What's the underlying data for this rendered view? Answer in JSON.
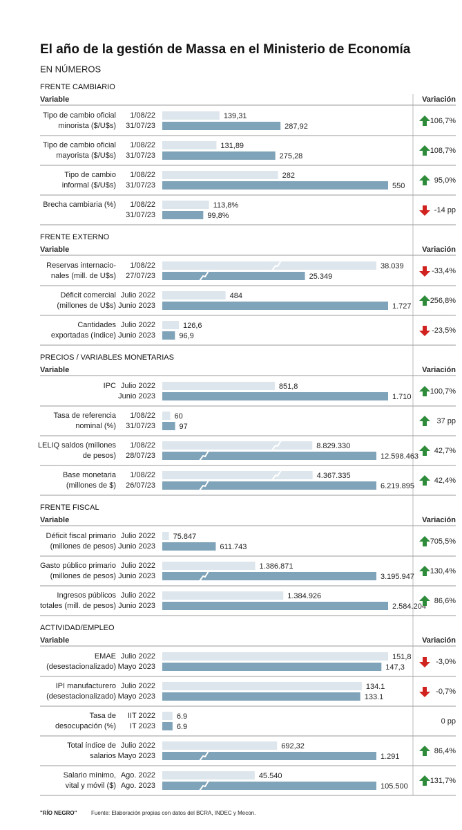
{
  "header": {
    "title": "El año de la gestión de Massa en el Ministerio de Economía",
    "subtitle": "EN NÚMEROS"
  },
  "column_labels": {
    "variable": "Variable",
    "variation": "Variación"
  },
  "colors": {
    "before": "#dde6ec",
    "after": "#7fa3b8",
    "up": "#2e8b3a",
    "down": "#d0231f"
  },
  "sections": [
    {
      "title": "FRENTE CAMBIARIO",
      "rows": [
        {
          "label_lines": [
            "Tipo de cambio oficial",
            "minorista ($/U$s)"
          ],
          "dates": [
            "1/08/22",
            "31/07/23"
          ],
          "values": [
            139.31,
            287.92
          ],
          "value_labels": [
            "139,31",
            "287,92"
          ],
          "variation": "106,7%",
          "trend": "up"
        },
        {
          "label_lines": [
            "Tipo de cambio oficial",
            "mayorista ($/U$s)"
          ],
          "dates": [
            "1/08/22",
            "31/07/23"
          ],
          "values": [
            131.89,
            275.28
          ],
          "value_labels": [
            "131,89",
            "275,28"
          ],
          "variation": "108,7%",
          "trend": "up"
        },
        {
          "label_lines": [
            "Tipo de cambio",
            "informal ($/U$s)"
          ],
          "dates": [
            "1/08/22",
            "31/07/23"
          ],
          "values": [
            282,
            550
          ],
          "variation": "95,0%",
          "trend": "up"
        },
        {
          "label_lines": [
            "Brecha cambiaria (%)"
          ],
          "dates": [
            "1/08/22",
            "31/07/23"
          ],
          "values": [
            113.8,
            99.8
          ],
          "value_labels": [
            "113,8%",
            "99,8%"
          ],
          "variation": "-14 pp",
          "trend": "down"
        }
      ]
    },
    {
      "title": "FRENTE EXTERNO",
      "rows": [
        {
          "label_lines": [
            "Reservas internacio-",
            "nales (mill. de U$s)"
          ],
          "dates": [
            "1/08/22",
            "27/07/23"
          ],
          "values": [
            38039,
            25349
          ],
          "value_labels": [
            "38.039",
            "25.349"
          ],
          "axis_break": true,
          "variation": "-33,4%",
          "trend": "down"
        },
        {
          "label_lines": [
            "Déficit comercial",
            "(millones de U$s)"
          ],
          "dates": [
            "Julio 2022",
            "Junio 2023"
          ],
          "values": [
            484,
            1727
          ],
          "value_labels": [
            "484",
            "1.727"
          ],
          "variation": "256,8%",
          "trend": "up"
        },
        {
          "label_lines": [
            "Cantidades",
            "exportadas (índice)"
          ],
          "dates": [
            "Julio 2022",
            "Junio 2023"
          ],
          "values": [
            126.6,
            96.9
          ],
          "value_labels": [
            "126,6",
            "96,9"
          ],
          "variation": "-23,5%",
          "trend": "down"
        }
      ]
    },
    {
      "title": "PRECIOS / VARIABLES MONETARIAS",
      "rows": [
        {
          "label_lines": [
            "IPC"
          ],
          "dates": [
            "Julio 2022",
            "Junio 2023"
          ],
          "values": [
            851.8,
            1710
          ],
          "value_labels": [
            "851,8",
            "1.710"
          ],
          "variation": "100,7%",
          "trend": "up"
        },
        {
          "label_lines": [
            "Tasa de referencia",
            "nominal (%)"
          ],
          "dates": [
            "1/08/22",
            "31/07/23"
          ],
          "values": [
            60,
            97
          ],
          "variation": "37 pp",
          "trend": "up"
        },
        {
          "label_lines": [
            "LELIQ saldos (millones",
            "de pesos)"
          ],
          "dates": [
            "1/08/22",
            "28/07/23"
          ],
          "values": [
            8829330,
            12598463
          ],
          "value_labels": [
            "8.829.330",
            "12.598.463"
          ],
          "axis_break": true,
          "variation": "42,7%",
          "trend": "up"
        },
        {
          "label_lines": [
            "Base monetaria",
            "(millones de $)"
          ],
          "dates": [
            "1/08/22",
            "26/07/23"
          ],
          "values": [
            4367335,
            6219895
          ],
          "value_labels": [
            "4.367.335",
            "6.219.895"
          ],
          "axis_break": true,
          "variation": "42,4%",
          "trend": "up"
        }
      ]
    },
    {
      "title": "FRENTE FISCAL",
      "rows": [
        {
          "label_lines": [
            "Déficit fiscal primario",
            "(millones de pesos)"
          ],
          "dates": [
            "Julio 2022",
            "Junio 2023"
          ],
          "values": [
            75847,
            611743
          ],
          "value_labels": [
            "75.847",
            "611.743"
          ],
          "variation": "705,5%",
          "trend": "up"
        },
        {
          "label_lines": [
            "Gasto público primario",
            "(millones de pesos)"
          ],
          "dates": [
            "Julio 2022",
            "Junio 2023"
          ],
          "values": [
            1386871,
            3195947
          ],
          "value_labels": [
            "1.386.871",
            "3.195.947"
          ],
          "axis_break": true,
          "variation": "130,4%",
          "trend": "up"
        },
        {
          "label_lines": [
            "Ingresos públicos",
            "totales (mill. de pesos)"
          ],
          "dates": [
            "Julio 2022",
            "Junio 2023"
          ],
          "values": [
            1384926,
            2584204
          ],
          "value_labels": [
            "1.384.926",
            "2.584.204"
          ],
          "variation": "86,6%",
          "trend": "up"
        }
      ]
    },
    {
      "title": "ACTIVIDAD/EMPLEO",
      "rows": [
        {
          "label_lines": [
            "EMAE",
            "(desestacionalizado)"
          ],
          "dates": [
            "Julio 2022",
            "Mayo 2023"
          ],
          "values": [
            151.8,
            147.3
          ],
          "value_labels": [
            "151,8",
            "147,3"
          ],
          "variation": "-3,0%",
          "trend": "down"
        },
        {
          "label_lines": [
            "IPI manufacturero",
            "(desestacionalizado)"
          ],
          "dates": [
            "Julio 2022",
            "Mayo 2023"
          ],
          "values": [
            134.1,
            133.1
          ],
          "variation": "-0,7%",
          "trend": "down"
        },
        {
          "label_lines": [
            "Tasa de",
            "desocupación (%)"
          ],
          "dates": [
            "IIT 2022",
            "IT 2023"
          ],
          "values": [
            6.9,
            6.9
          ],
          "variation": "0 pp",
          "trend": "none"
        },
        {
          "label_lines": [
            "Total índice de",
            "salarios"
          ],
          "dates": [
            "Julio 2022",
            "Mayo 2023"
          ],
          "values": [
            692.32,
            1291
          ],
          "value_labels": [
            "692,32",
            "1.291"
          ],
          "axis_break": true,
          "variation": "86,4%",
          "trend": "up"
        },
        {
          "label_lines": [
            "Salario mínimo,",
            "vital y móvil ($)"
          ],
          "dates": [
            "Ago. 2022",
            "Ago. 2023"
          ],
          "values": [
            45540,
            105500
          ],
          "value_labels": [
            "45.540",
            "105.500"
          ],
          "axis_break": true,
          "variation": "131,7%",
          "trend": "up"
        }
      ]
    }
  ],
  "footer": {
    "brand": "\"RÍO NEGRO\"",
    "source": "Fuente: Elaboración propias con datos del BCRA, INDEC y Mecon."
  }
}
